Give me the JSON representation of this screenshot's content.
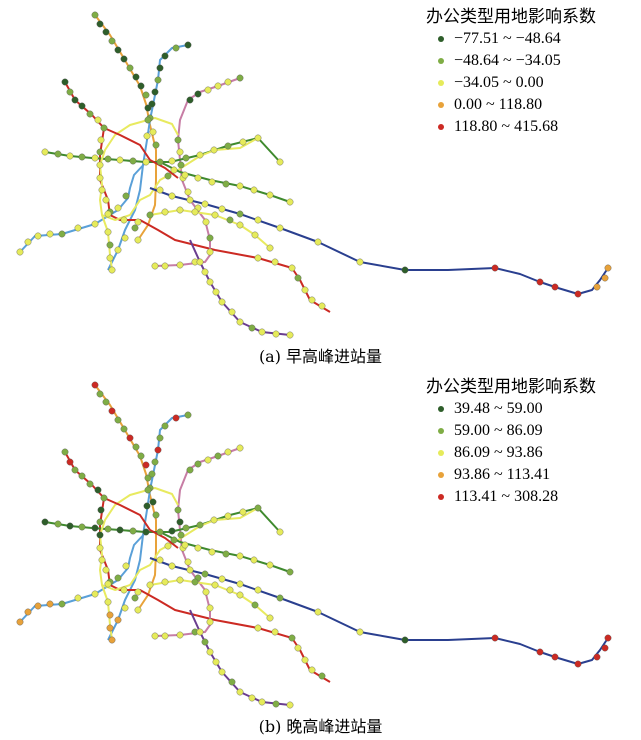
{
  "colors": {
    "class1": "#2e5e2a",
    "class2": "#7fad45",
    "class3": "#e6eb5a",
    "class4": "#e8a23a",
    "class5": "#cc2a23",
    "line_blue": "#5aa0d8",
    "line_orange": "#e8a23a",
    "line_pink": "#c77da5",
    "line_red": "#cc2a23",
    "line_green": "#3f8a2e",
    "line_yellow": "#e8ea5f",
    "line_navy": "#2a3f8f",
    "line_purple": "#6a3d8f"
  },
  "panels": [
    {
      "caption": "(a) 早高峰进站量",
      "legend_title": "办公类型用地影响系数",
      "legend_items": [
        {
          "label": "−77.51 ~ −48.64",
          "color": "#2e5e2a"
        },
        {
          "label": "−48.64 ~ −34.05",
          "color": "#7fad45"
        },
        {
          "label": "−34.05 ~ 0.00",
          "color": "#e6eb5a"
        },
        {
          "label": "0.00 ~ 118.80",
          "color": "#e8a23a"
        },
        {
          "label": "118.80 ~ 415.68",
          "color": "#cc2a23"
        }
      ]
    },
    {
      "caption": "(b) 晚高峰进站量",
      "legend_title": "办公类型用地影响系数",
      "legend_items": [
        {
          "label": "39.48 ~ 59.00",
          "color": "#2e5e2a"
        },
        {
          "label": "59.00 ~ 86.09",
          "color": "#7fad45"
        },
        {
          "label": "86.09 ~ 93.86",
          "color": "#e6eb5a"
        },
        {
          "label": "93.86 ~ 113.41",
          "color": "#e8a23a"
        },
        {
          "label": "113.41 ~ 308.28",
          "color": "#cc2a23"
        }
      ]
    }
  ]
}
